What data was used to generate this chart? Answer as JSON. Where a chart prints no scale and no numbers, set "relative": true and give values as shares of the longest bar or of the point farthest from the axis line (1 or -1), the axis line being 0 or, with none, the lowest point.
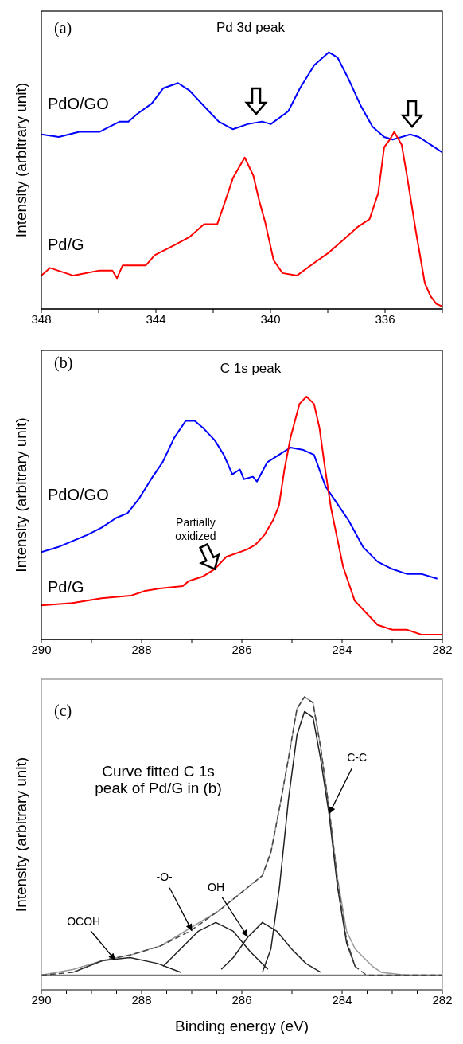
{
  "chart_data": [
    {
      "type": "line",
      "title": "Pd 3d peak",
      "ylabel": "Intensity (arbitrary unit)",
      "annotations": [
        "(a)"
      ],
      "relative": true,
      "tick_labels": "x",
      "xlim": [
        348,
        334
      ],
      "xticks": [
        348,
        {
          "value": 346,
          "label": null
        },
        344,
        {
          "value": 342,
          "label": null
        },
        340,
        {
          "value": 338,
          "label": null
        },
        336,
        {
          "value": 334,
          "label": null
        }
      ],
      "series": [
        {
          "name": "PdO/GO",
          "color": "#0000ff",
          "x": [
            348.0,
            347.39,
            346.68,
            345.97,
            345.62,
            345.26,
            344.96,
            344.65,
            344.15,
            343.74,
            343.23,
            342.82,
            342.32,
            341.81,
            341.31,
            340.8,
            340.29,
            339.99,
            339.38,
            338.97,
            338.47,
            337.96,
            337.66,
            337.25,
            336.84,
            336.44,
            336.03,
            335.73,
            335.12,
            334.82,
            334.41,
            334.0
          ],
          "values": [
            0.68,
            0.67,
            0.69,
            0.69,
            0.71,
            0.73,
            0.73,
            0.76,
            0.8,
            0.86,
            0.88,
            0.85,
            0.79,
            0.73,
            0.7,
            0.72,
            0.73,
            0.72,
            0.77,
            0.86,
            0.95,
            1.0,
            0.98,
            0.89,
            0.79,
            0.71,
            0.67,
            0.66,
            0.68,
            0.67,
            0.64,
            0.61
          ]
        },
        {
          "name": "Pd/G",
          "color": "#ff0000",
          "x": [
            348.0,
            347.7,
            346.88,
            345.97,
            345.52,
            345.36,
            345.16,
            344.35,
            344.04,
            343.33,
            342.83,
            342.32,
            341.86,
            341.61,
            341.31,
            340.9,
            340.6,
            340.39,
            340.19,
            339.89,
            339.58,
            339.08,
            338.47,
            337.96,
            337.45,
            336.95,
            336.54,
            336.24,
            336.03,
            335.83,
            335.68,
            335.42,
            335.22,
            334.92,
            334.61,
            334.41,
            334.21,
            334.0
          ],
          "values": [
            0.13,
            0.16,
            0.13,
            0.15,
            0.15,
            0.12,
            0.17,
            0.17,
            0.21,
            0.25,
            0.28,
            0.33,
            0.33,
            0.41,
            0.51,
            0.59,
            0.52,
            0.42,
            0.34,
            0.19,
            0.14,
            0.13,
            0.18,
            0.22,
            0.27,
            0.32,
            0.35,
            0.45,
            0.63,
            0.66,
            0.69,
            0.64,
            0.51,
            0.3,
            0.1,
            0.05,
            0.02,
            0.01
          ]
        }
      ]
    },
    {
      "type": "line",
      "title": "C 1s peak",
      "ylabel": "Intensity (arbitrary unit)",
      "annotations": [
        "(b)",
        {
          "text": "Partially oxidized",
          "x": 286.54,
          "y": 0.29
        }
      ],
      "relative": true,
      "tick_labels": "x",
      "xlim": [
        290,
        282
      ],
      "xticks": [
        290,
        {
          "value": 289,
          "label": null
        },
        288,
        {
          "value": 287,
          "label": null
        },
        286,
        {
          "value": 285,
          "label": null
        },
        284,
        {
          "value": 283,
          "label": null
        },
        282
      ],
      "series": [
        {
          "name": "PdO/GO",
          "color": "#0000ff",
          "x": [
            290.0,
            289.67,
            289.32,
            289.09,
            288.8,
            288.51,
            288.28,
            288.05,
            287.81,
            287.58,
            287.35,
            287.12,
            286.94,
            286.77,
            286.54,
            286.36,
            286.19,
            286.04,
            285.96,
            285.78,
            285.7,
            285.49,
            285.26,
            285.03,
            284.77,
            284.56,
            284.33,
            284.1,
            283.87,
            283.58,
            283.29,
            283.0,
            282.71,
            282.42,
            282.1
          ],
          "values": [
            0.36,
            0.38,
            0.41,
            0.43,
            0.46,
            0.5,
            0.52,
            0.58,
            0.66,
            0.73,
            0.83,
            0.9,
            0.9,
            0.87,
            0.82,
            0.76,
            0.68,
            0.7,
            0.66,
            0.67,
            0.65,
            0.73,
            0.76,
            0.79,
            0.78,
            0.76,
            0.63,
            0.56,
            0.49,
            0.38,
            0.32,
            0.29,
            0.27,
            0.27,
            0.25
          ]
        },
        {
          "name": "Pd/G",
          "color": "#ff0000",
          "x": [
            290.0,
            289.38,
            288.8,
            288.22,
            287.93,
            287.64,
            287.18,
            287.06,
            286.77,
            286.54,
            286.31,
            285.9,
            285.73,
            285.55,
            285.38,
            285.26,
            285.15,
            285.03,
            284.85,
            284.71,
            284.56,
            284.45,
            284.33,
            284.22,
            284.1,
            283.98,
            283.75,
            283.52,
            283.29,
            283.0,
            282.71,
            282.42,
            282.0
          ],
          "values": [
            0.14,
            0.15,
            0.17,
            0.18,
            0.2,
            0.21,
            0.22,
            0.24,
            0.26,
            0.29,
            0.34,
            0.37,
            0.39,
            0.43,
            0.49,
            0.55,
            0.7,
            0.83,
            0.97,
            1.0,
            0.97,
            0.87,
            0.69,
            0.54,
            0.42,
            0.3,
            0.16,
            0.11,
            0.06,
            0.04,
            0.04,
            0.02,
            0.02
          ]
        }
      ]
    },
    {
      "type": "line",
      "title": "Curve fitted C 1s peak of Pd/G in (b)",
      "xlabel": "Binding energy (eV)",
      "ylabel": "Intensity (arbitrary unit)",
      "annotations": [
        "(c)",
        {
          "text": "C-C",
          "x": 284.26,
          "y": 0.6
        },
        {
          "text": "OH",
          "x": 285.88,
          "y": 0.18
        },
        {
          "text": "-O-",
          "x": 286.99,
          "y": 0.2
        },
        {
          "text": "OCOH",
          "x": 288.52,
          "y": 0.1
        }
      ],
      "relative": true,
      "tick_labels": "x",
      "xlim": [
        290,
        282
      ],
      "xticks": [
        290,
        {
          "value": 289.5,
          "label": null
        },
        {
          "value": 289,
          "label": null
        },
        {
          "value": 288.5,
          "label": null
        },
        288,
        {
          "value": 287.5,
          "label": null
        },
        {
          "value": 287,
          "label": null
        },
        {
          "value": 286.5,
          "label": null
        },
        286,
        {
          "value": 285.5,
          "label": null
        },
        {
          "value": 285,
          "label": null
        },
        {
          "value": 284.5,
          "label": null
        },
        284,
        {
          "value": 283.5,
          "label": null
        },
        {
          "value": 283,
          "label": null
        },
        {
          "value": 282.5,
          "label": null
        },
        282
      ],
      "series": [
        {
          "color": "#999999",
          "x": [
            290.0,
            289.36,
            288.78,
            288.2,
            287.62,
            287.04,
            286.46,
            285.88,
            285.59,
            285.42,
            285.25,
            285.07,
            284.9,
            284.75,
            284.58,
            284.43,
            284.26,
            284.09,
            283.91,
            283.74,
            283.57,
            283.39,
            283.22,
            282.7,
            282.0
          ],
          "values": [
            0.05,
            0.07,
            0.1,
            0.12,
            0.15,
            0.21,
            0.27,
            0.35,
            0.39,
            0.47,
            0.62,
            0.79,
            0.96,
            1.0,
            0.98,
            0.83,
            0.62,
            0.38,
            0.2,
            0.14,
            0.11,
            0.08,
            0.06,
            0.05,
            0.05
          ]
        },
        {
          "color": "#777777",
          "x": [
            290,
            282
          ],
          "values": [
            0.05,
            0.05
          ]
        },
        {
          "color": "#222222",
          "x": [
            289.36,
            288.78,
            288.23,
            287.68,
            287.22
          ],
          "values": [
            0.06,
            0.1,
            0.11,
            0.09,
            0.06
          ]
        },
        {
          "color": "#222222",
          "x": [
            287.57,
            287.22,
            286.87,
            286.52,
            286.17,
            285.83,
            285.48
          ],
          "values": [
            0.08,
            0.14,
            0.2,
            0.23,
            0.2,
            0.13,
            0.07
          ]
        },
        {
          "color": "#222222",
          "x": [
            286.41,
            286.17,
            285.88,
            285.59,
            285.3,
            285.01,
            284.72,
            284.43
          ],
          "values": [
            0.07,
            0.11,
            0.18,
            0.23,
            0.2,
            0.14,
            0.09,
            0.06
          ]
        },
        {
          "color": "#222222",
          "x": [
            285.59,
            285.42,
            285.25,
            285.07,
            284.9,
            284.75,
            284.58,
            284.43,
            284.26,
            284.09,
            283.91,
            283.74
          ],
          "values": [
            0.06,
            0.14,
            0.35,
            0.65,
            0.87,
            0.95,
            0.93,
            0.79,
            0.6,
            0.35,
            0.16,
            0.08
          ]
        },
        {
          "color": "#444444",
          "line_style": "dashed",
          "x": [
            290.0,
            289.36,
            288.78,
            288.2,
            287.62,
            287.04,
            286.46,
            285.88,
            285.59,
            285.42,
            285.25,
            285.07,
            284.9,
            284.75,
            284.58,
            284.43,
            284.26,
            284.09,
            283.91,
            283.74,
            283.51,
            283.28,
            282.0
          ],
          "values": [
            0.05,
            0.06,
            0.1,
            0.12,
            0.15,
            0.2,
            0.27,
            0.35,
            0.39,
            0.47,
            0.62,
            0.79,
            0.96,
            1.0,
            0.98,
            0.83,
            0.62,
            0.37,
            0.17,
            0.08,
            0.05,
            0.05,
            0.05
          ]
        }
      ]
    }
  ]
}
